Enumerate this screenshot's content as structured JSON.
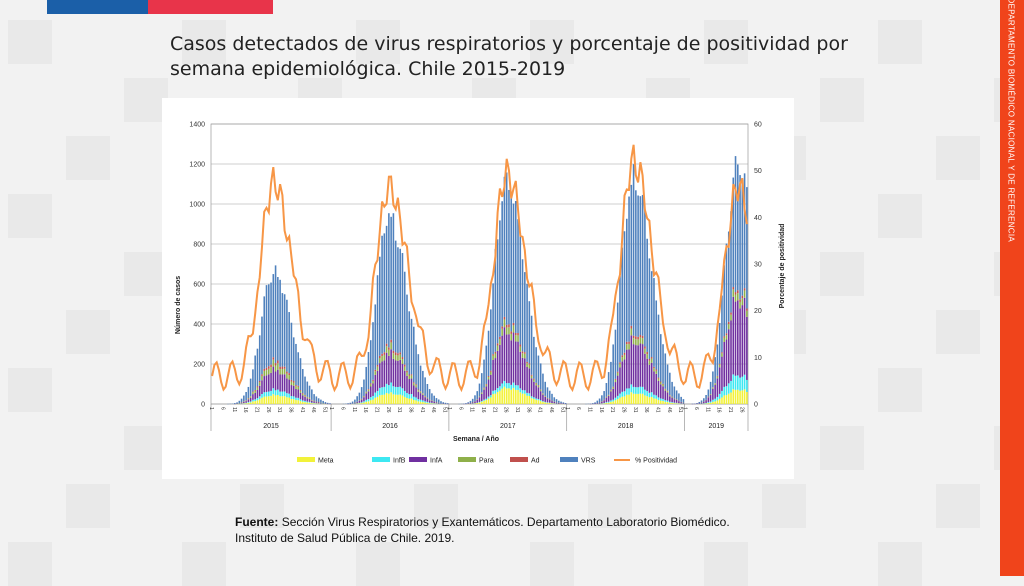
{
  "slide": {
    "title": "Casos detectados de virus respiratorios y porcentaje de positividad por semana epidemiológica. Chile 2015-2019",
    "side_label": "DEPARTAMENTO BIOMÉDICO NACIONAL Y DE REFERENCIA",
    "source_bold": "Fuente:",
    "source_text": "Sección Virus Respiratorios y Exantemáticos. Departamento Laboratorio Biomédico.",
    "source_line2": "Instituto de Salud Pública de Chile. 2019.",
    "colors": {
      "brand_blue": "#1b5fa8",
      "brand_red": "#e8344a",
      "side_orange": "#f0441b"
    }
  },
  "chart_data": {
    "type": "bar",
    "stacked": true,
    "ylabel": "Número de casos",
    "y2label": "Porcentaje de positividad",
    "xlabel": "Semana / Año",
    "ylim": [
      0,
      1400
    ],
    "y2lim": [
      0,
      60
    ],
    "yticks": [
      0,
      200,
      400,
      600,
      800,
      1000,
      1200,
      1400
    ],
    "y2ticks": [
      0,
      10,
      20,
      30,
      40,
      50,
      60
    ],
    "years": [
      "2015",
      "2016",
      "2017",
      "2018",
      "2019"
    ],
    "year_weeks": [
      53,
      52,
      52,
      52,
      28
    ],
    "series": [
      {
        "name": "Meta",
        "color": "#f2f23a",
        "peaks": [
          50,
          60,
          90,
          60,
          80
        ]
      },
      {
        "name": "InfB",
        "color": "#3de8f2",
        "peaks": [
          30,
          50,
          30,
          40,
          80
        ]
      },
      {
        "name": "InfA",
        "color": "#7030a0",
        "peaks": [
          110,
          170,
          280,
          250,
          420
        ]
      },
      {
        "name": "Para",
        "color": "#8fb04a",
        "peaks": [
          35,
          35,
          40,
          35,
          40
        ]
      },
      {
        "name": "Ad",
        "color": "#c0504d",
        "peaks": [
          15,
          15,
          15,
          15,
          15
        ]
      },
      {
        "name": "VRS",
        "color": "#4f81bd",
        "peaks": [
          500,
          720,
          780,
          860,
          700
        ]
      },
      {
        "name": "% Positividad",
        "color": "#f79646",
        "type": "line",
        "axis": "right",
        "peaks": [
          51,
          50,
          53,
          56,
          50
        ]
      }
    ],
    "peak_weeks": [
      28,
      26,
      26,
      30,
      24
    ],
    "legend_position": "bottom",
    "grid": true
  }
}
